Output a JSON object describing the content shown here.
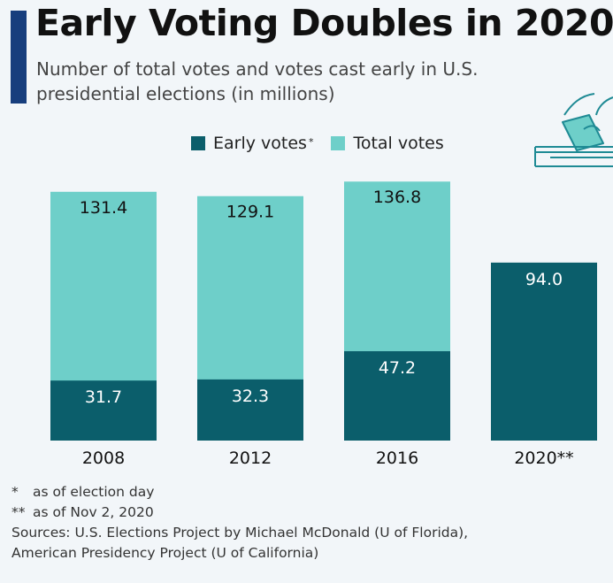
{
  "title": "Early Voting Doubles in 2020",
  "subtitle": "Number of total votes and votes cast early in U.S. presidential elections (in millions)",
  "colors": {
    "accent": "#173e7d",
    "early": "#0b5e6b",
    "total": "#6ecfc9"
  },
  "legend": {
    "early_label": "Early votes",
    "early_mark": "*",
    "total_label": "Total votes"
  },
  "chart_data": {
    "type": "bar",
    "stacked": "overlay",
    "categories": [
      "2008",
      "2012",
      "2016",
      "2020**"
    ],
    "series": [
      {
        "name": "Early votes",
        "values": [
          31.7,
          32.3,
          47.2,
          94.0
        ],
        "labels": [
          "31.7",
          "32.3",
          "47.2",
          "94.0"
        ],
        "color": "#0b5e6b"
      },
      {
        "name": "Total votes",
        "values": [
          131.4,
          129.1,
          136.8,
          null
        ],
        "labels": [
          "131.4",
          "129.1",
          "136.8",
          ""
        ],
        "color": "#6ecfc9"
      }
    ],
    "ylim": [
      0,
      140
    ],
    "grid": false,
    "legend_position": "top"
  },
  "footnotes": [
    {
      "mark": "*",
      "text": "as of election day"
    },
    {
      "mark": "**",
      "text": "as of Nov 2, 2020"
    }
  ],
  "sources": [
    "Sources: U.S. Elections Project by Michael McDonald (U of Florida),",
    "American Presidency Project (U of California)"
  ],
  "icon": "ballot-box-icon"
}
